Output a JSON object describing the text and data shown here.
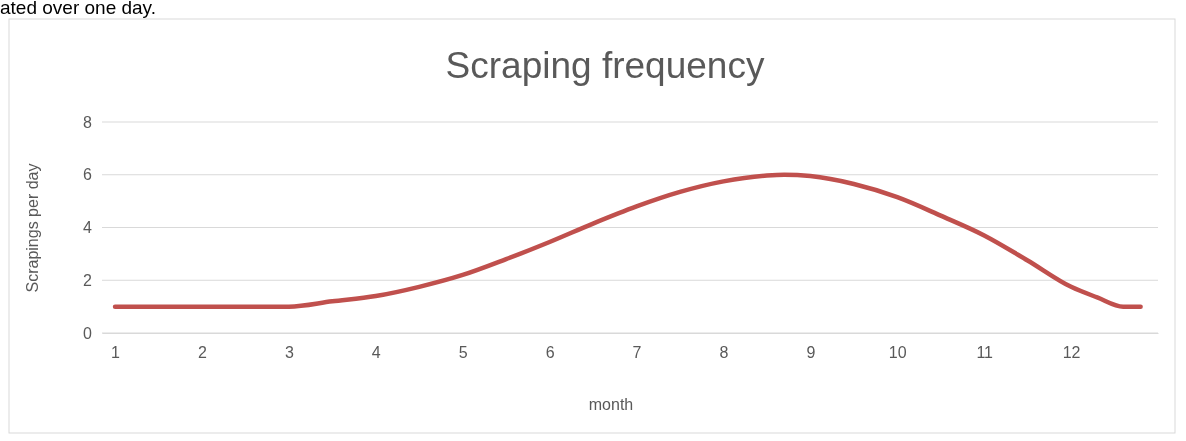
{
  "chart_data": {
    "type": "line",
    "title": "Scraping frequency",
    "xlabel": "month",
    "ylabel": "Scrapings per day",
    "annotations": [
      "ated over one day."
    ],
    "xlim": [
      0.85,
      13
    ],
    "xticks": [
      1,
      2,
      3,
      4,
      5,
      6,
      7,
      8,
      9,
      10,
      11,
      12
    ],
    "ylim": [
      0,
      8
    ],
    "yticks": [
      0,
      2,
      4,
      6,
      8
    ],
    "grid": "y",
    "marker": "none",
    "line_style": "solid",
    "series": [
      {
        "color": "#c0504d",
        "x": [
          1,
          2,
          2.5,
          3,
          3.5,
          4,
          4.5,
          5,
          5.5,
          6,
          6.5,
          7,
          7.5,
          8,
          8.5,
          8.7,
          9,
          9.5,
          10,
          10.5,
          11,
          11.5,
          12,
          12.3,
          12.6,
          12.8
        ],
        "values": [
          1,
          1,
          1,
          1,
          1.2,
          1.4,
          1.75,
          2.2,
          2.8,
          3.45,
          4.15,
          4.8,
          5.35,
          5.75,
          5.97,
          6,
          5.95,
          5.65,
          5.15,
          4.45,
          3.7,
          2.75,
          1.75,
          1.35,
          1,
          1
        ]
      }
    ]
  }
}
